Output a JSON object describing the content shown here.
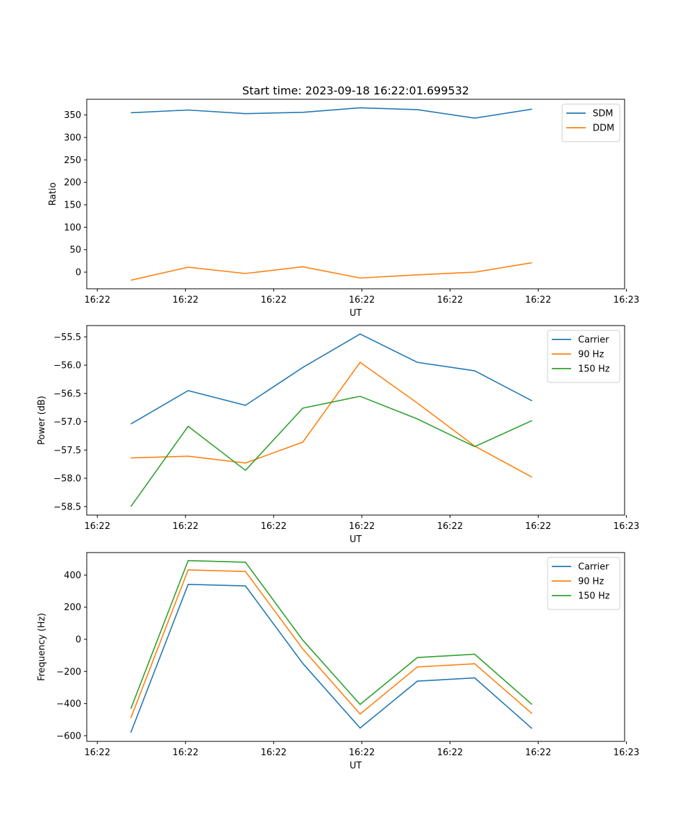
{
  "figure": {
    "title": "Start time: 2023-09-18 16:22:01.699532"
  },
  "chart_data": [
    {
      "type": "line",
      "title": "Start time: 2023-09-18 16:22:01.699532",
      "xlabel": "UT",
      "ylabel": "Ratio",
      "x": [
        0.5,
        1.15,
        1.8,
        2.45,
        3.1,
        3.75,
        4.4,
        5.05
      ],
      "xlim": [
        0,
        6.1
      ],
      "xticks": [
        0.12,
        1.12,
        2.12,
        3.12,
        4.12,
        5.12,
        6.12
      ],
      "xtick_labels": [
        "16:22",
        "16:22",
        "16:22",
        "16:22",
        "16:22",
        "16:22",
        "16:23"
      ],
      "ylim": [
        -37,
        385
      ],
      "yticks": [
        0,
        50,
        100,
        150,
        200,
        250,
        300,
        350
      ],
      "ytick_labels": [
        "0",
        "50",
        "100",
        "150",
        "200",
        "250",
        "300",
        "350"
      ],
      "legend_position": "top-right",
      "series": [
        {
          "name": "SDM",
          "color": "#1f77b4",
          "values": [
            355,
            361,
            353,
            356,
            366,
            362,
            343,
            363
          ]
        },
        {
          "name": "DDM",
          "color": "#ff7f0e",
          "values": [
            -18,
            11,
            -3,
            12,
            -13,
            -6,
            0,
            21
          ]
        }
      ]
    },
    {
      "type": "line",
      "title": "",
      "xlabel": "UT",
      "ylabel": "Power (dB)",
      "x": [
        0.5,
        1.15,
        1.8,
        2.45,
        3.1,
        3.75,
        4.4,
        5.05
      ],
      "xlim": [
        0,
        6.1
      ],
      "xticks": [
        0.12,
        1.12,
        2.12,
        3.12,
        4.12,
        5.12,
        6.12
      ],
      "xtick_labels": [
        "16:22",
        "16:22",
        "16:22",
        "16:22",
        "16:22",
        "16:22",
        "16:23"
      ],
      "ylim": [
        -58.65,
        -55.3
      ],
      "yticks": [
        -58.5,
        -58.0,
        -57.5,
        -57.0,
        -56.5,
        -56.0,
        -55.5
      ],
      "ytick_labels": [
        "−58.5",
        "−58.0",
        "−57.5",
        "−57.0",
        "−56.5",
        "−56.0",
        "−55.5"
      ],
      "legend_position": "top-right",
      "series": [
        {
          "name": "Carrier",
          "color": "#1f77b4",
          "values": [
            -57.04,
            -56.45,
            -56.71,
            -56.04,
            -55.45,
            -55.95,
            -56.1,
            -56.63
          ]
        },
        {
          "name": "90 Hz",
          "color": "#ff7f0e",
          "values": [
            -57.64,
            -57.61,
            -57.73,
            -57.36,
            -55.95,
            -56.67,
            -57.43,
            -57.98
          ]
        },
        {
          "name": "150 Hz",
          "color": "#2ca02c",
          "values": [
            -58.5,
            -57.08,
            -57.86,
            -56.76,
            -56.55,
            -56.95,
            -57.44,
            -56.98
          ]
        }
      ]
    },
    {
      "type": "line",
      "title": "",
      "xlabel": "UT",
      "ylabel": "Frequency (Hz)",
      "x": [
        0.5,
        1.15,
        1.8,
        2.45,
        3.1,
        3.75,
        4.4,
        5.05
      ],
      "xlim": [
        0,
        6.1
      ],
      "xticks": [
        0.12,
        1.12,
        2.12,
        3.12,
        4.12,
        5.12,
        6.12
      ],
      "xtick_labels": [
        "16:22",
        "16:22",
        "16:22",
        "16:22",
        "16:22",
        "16:22",
        "16:23"
      ],
      "ylim": [
        -635,
        540
      ],
      "yticks": [
        -600,
        -400,
        -200,
        0,
        200,
        400
      ],
      "ytick_labels": [
        "−600",
        "−400",
        "−200",
        "0",
        "200",
        "400"
      ],
      "legend_position": "top-right",
      "series": [
        {
          "name": "Carrier",
          "color": "#1f77b4",
          "values": [
            -580,
            342,
            332,
            -150,
            -552,
            -260,
            -240,
            -555
          ]
        },
        {
          "name": "90 Hz",
          "color": "#ff7f0e",
          "values": [
            -490,
            432,
            422,
            -60,
            -465,
            -172,
            -152,
            -462
          ]
        },
        {
          "name": "150 Hz",
          "color": "#2ca02c",
          "values": [
            -432,
            490,
            480,
            -5,
            -405,
            -113,
            -93,
            -405
          ]
        }
      ]
    }
  ]
}
